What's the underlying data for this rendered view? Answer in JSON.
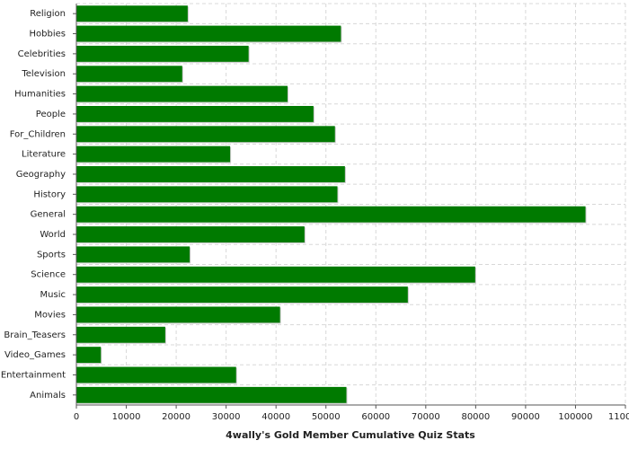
{
  "chart_data": {
    "type": "hbar",
    "title": "4wally's Gold Member Cumulative Quiz Stats",
    "categories": [
      "Religion",
      "Hobbies",
      "Celebrities",
      "Television",
      "Humanities",
      "People",
      "For_Children",
      "Literature",
      "Geography",
      "History",
      "General",
      "World",
      "Sports",
      "Science",
      "Music",
      "Movies",
      "Brain_Teasers",
      "Video_Games",
      "Entertainment",
      "Animals"
    ],
    "values": [
      22300,
      53000,
      34500,
      21200,
      42300,
      47500,
      51800,
      30800,
      53800,
      52300,
      102000,
      45700,
      22700,
      79900,
      66400,
      40800,
      17800,
      4900,
      32000,
      54100
    ],
    "color": "#007a00",
    "xlim": [
      0,
      110000
    ],
    "xticks": [
      0,
      10000,
      20000,
      30000,
      40000,
      50000,
      60000,
      70000,
      80000,
      90000,
      100000,
      110000
    ],
    "grid": true
  }
}
